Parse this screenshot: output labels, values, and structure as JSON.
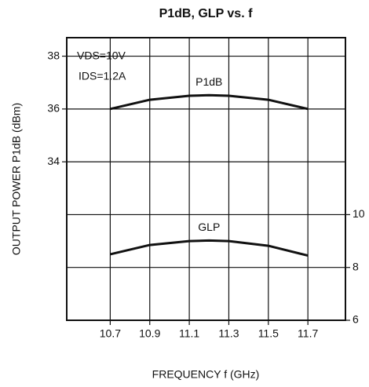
{
  "chart_data": {
    "type": "line",
    "title": "P1dB, GLP vs. f",
    "xlabel": "FREQUENCY f (GHz)",
    "ylabel": "OUTPUT POWER P1dB (dBm)",
    "annotations": [
      "VDS=10V",
      "IDS=1.2A"
    ],
    "x": [
      10.7,
      10.9,
      11.1,
      11.2,
      11.3,
      11.5,
      11.7
    ],
    "series": [
      {
        "name": "P1dB",
        "color": "#111111",
        "values": [
          36.0,
          36.35,
          36.5,
          36.52,
          36.5,
          36.35,
          36.0
        ]
      },
      {
        "name": "GLP",
        "color": "#111111",
        "axis": "y2",
        "values": [
          8.5,
          8.85,
          9.0,
          9.02,
          9.0,
          8.82,
          8.45
        ]
      }
    ],
    "xlim": [
      10.48,
      11.89
    ],
    "xticks": [
      10.7,
      10.9,
      11.1,
      11.3,
      11.5,
      11.7
    ],
    "ylim": [
      28,
      38.7
    ],
    "yticks": [
      34,
      36,
      38
    ],
    "y2lim": [
      6,
      16.7
    ],
    "y2ticks": [
      6,
      8,
      10
    ],
    "grid": true
  }
}
